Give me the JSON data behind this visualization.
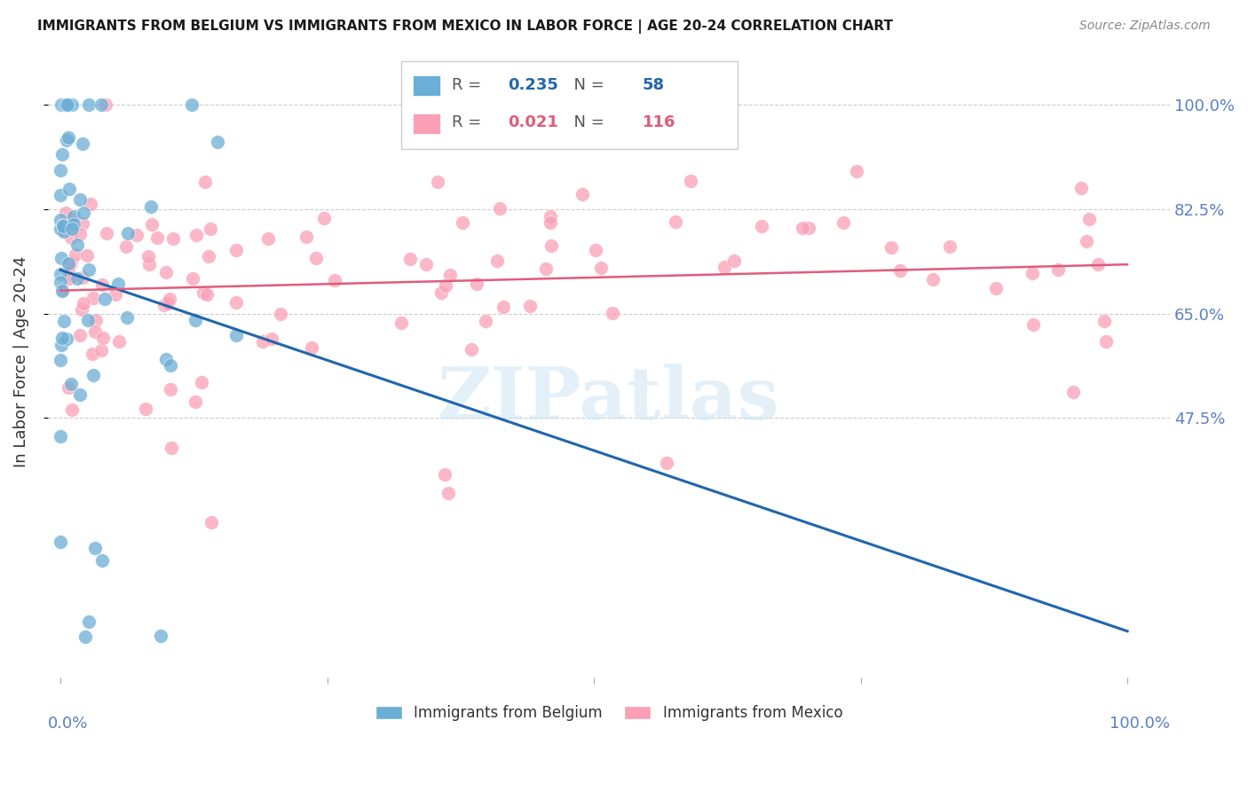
{
  "title": "IMMIGRANTS FROM BELGIUM VS IMMIGRANTS FROM MEXICO IN LABOR FORCE | AGE 20-24 CORRELATION CHART",
  "source": "Source: ZipAtlas.com",
  "ylabel": "In Labor Force | Age 20-24",
  "ytick_labels": [
    "100.0%",
    "82.5%",
    "65.0%",
    "47.5%"
  ],
  "ytick_values": [
    1.0,
    0.825,
    0.65,
    0.475
  ],
  "legend_blue_R": "0.235",
  "legend_blue_N": "58",
  "legend_pink_R": "0.021",
  "legend_pink_N": "116",
  "blue_color": "#6baed6",
  "pink_color": "#fa9fb5",
  "blue_line_color": "#2166ac",
  "pink_line_color": "#e05c7a",
  "tick_label_color": "#5a7fc7",
  "watermark": "ZIPatlas",
  "n_blue": 58,
  "n_pink": 116
}
